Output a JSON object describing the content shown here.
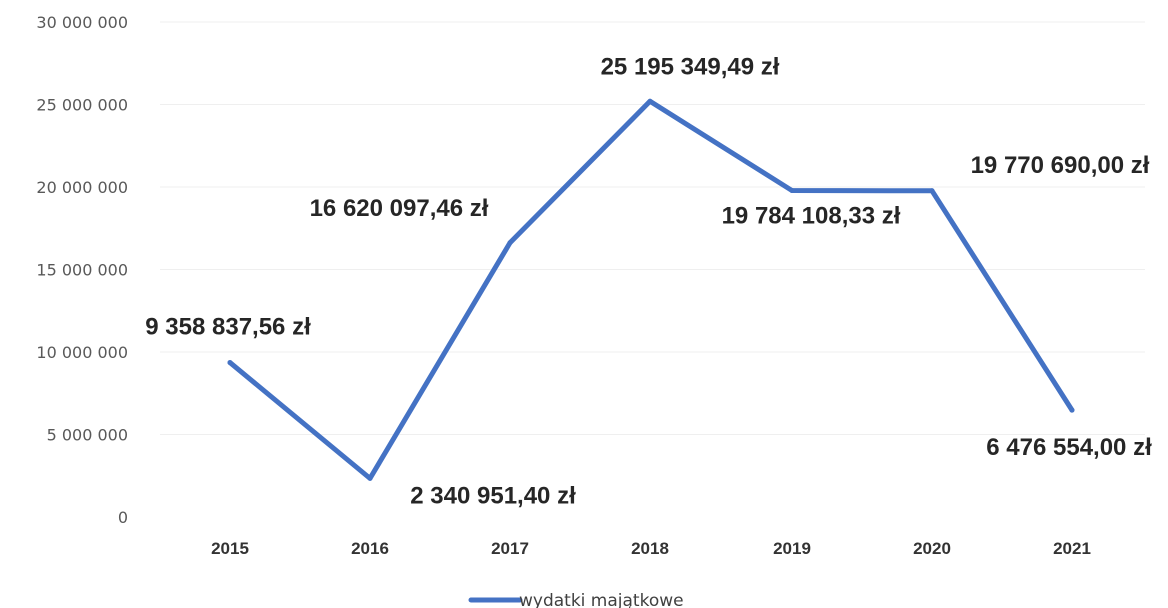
{
  "chart_data": {
    "type": "line",
    "title": "",
    "xlabel": "",
    "ylabel": "",
    "categories": [
      "2015",
      "2016",
      "2017",
      "2018",
      "2019",
      "2020",
      "2021"
    ],
    "series": [
      {
        "name": "wydatki majątkowe",
        "values": [
          9358837.56,
          2340951.4,
          16620097.46,
          25195349.49,
          19784108.33,
          19770690.0,
          6476554.0
        ],
        "data_labels": [
          "9 358 837,56 zł",
          "2 340 951,40 zł",
          "16 620 097,46 zł",
          "25 195 349,49 zł",
          "19 784 108,33 zł",
          "19 770 690,00 zł",
          "6 476 554,00 zł"
        ],
        "color": "#4472C4"
      }
    ],
    "ylim": [
      0,
      30000000
    ],
    "yticks": [
      0,
      5000000,
      10000000,
      15000000,
      20000000,
      25000000,
      30000000
    ],
    "ytick_labels": [
      "0",
      "5 000 000",
      "10 000 000",
      "15 000 000",
      "20 000 000",
      "25 000 000",
      "30 000 000"
    ],
    "grid": true,
    "legend_position": "bottom"
  }
}
